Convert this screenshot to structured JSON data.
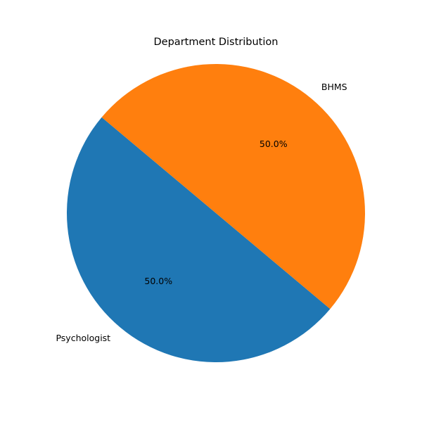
{
  "chart_data": {
    "type": "pie",
    "title": "Department Distribution",
    "labels": [
      "Psychologist",
      "BHMS"
    ],
    "values": [
      50,
      50
    ],
    "percent_labels": [
      "50.0%",
      "50.0%"
    ],
    "colors": [
      "#1f77b4",
      "#ff7f0e"
    ],
    "legend": "none"
  }
}
